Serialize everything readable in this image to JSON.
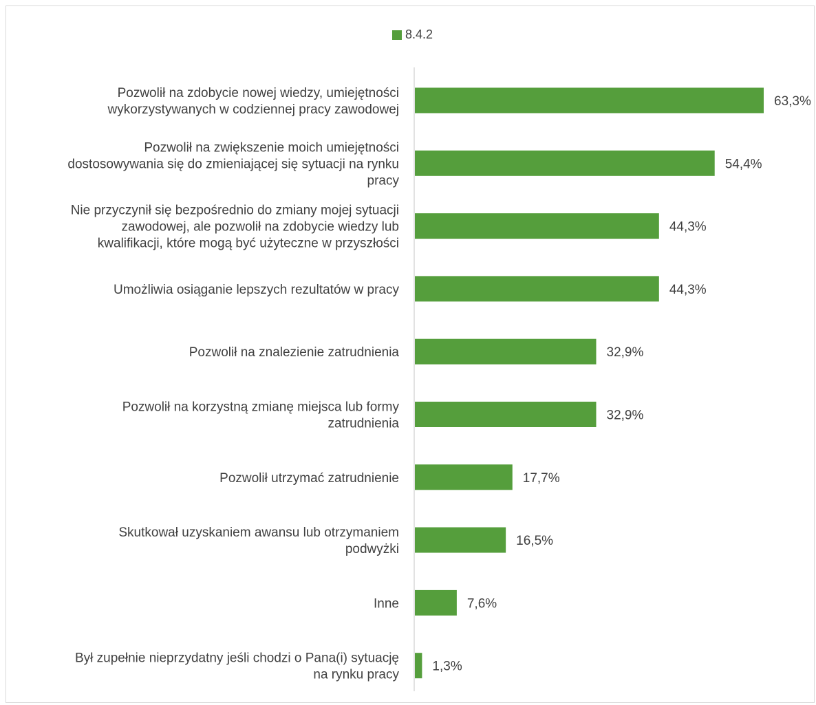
{
  "chart_data": {
    "type": "bar",
    "orientation": "horizontal",
    "series": [
      {
        "name": "8.4.2",
        "color": "#559E3C",
        "values": [
          63.3,
          54.4,
          44.3,
          44.3,
          32.9,
          32.9,
          17.7,
          16.5,
          7.6,
          1.3
        ],
        "labels": [
          "63,3%",
          "54,4%",
          "44,3%",
          "44,3%",
          "32,9%",
          "32,9%",
          "17,7%",
          "16,5%",
          "7,6%",
          "1,3%"
        ]
      }
    ],
    "categories": [
      [
        "Pozwolił na zdobycie nowej wiedzy, umiejętności",
        "wykorzystywanych w codziennej pracy zawodowej"
      ],
      [
        "Pozwolił na zwiększenie moich umiejętności",
        "dostosowywania się do zmieniającej się sytuacji na rynku",
        "pracy"
      ],
      [
        "Nie przyczynił się bezpośrednio do zmiany mojej sytuacji",
        "zawodowej, ale pozwolił na zdobycie wiedzy lub",
        "kwalifikacji, które mogą być użyteczne w przyszłości"
      ],
      [
        "Umożliwia osiąganie lepszych rezultatów w pracy"
      ],
      [
        "Pozwolił na znalezienie zatrudnienia"
      ],
      [
        "Pozwolił na korzystną zmianę miejsca lub formy",
        "zatrudnienia"
      ],
      [
        "Pozwolił utrzymać zatrudnienie"
      ],
      [
        "Skutkował uzyskaniem awansu lub otrzymaniem",
        "podwyżki"
      ],
      [
        "Inne"
      ],
      [
        "Był zupełnie nieprzydatny jeśli chodzi o Pana(i) sytuację",
        "na rynku pracy"
      ]
    ],
    "title": "",
    "xlabel": "",
    "ylabel": "",
    "xlim": [
      0,
      70
    ],
    "grid": false,
    "legend": "top-center",
    "axis_color": "#d9d9d9"
  }
}
